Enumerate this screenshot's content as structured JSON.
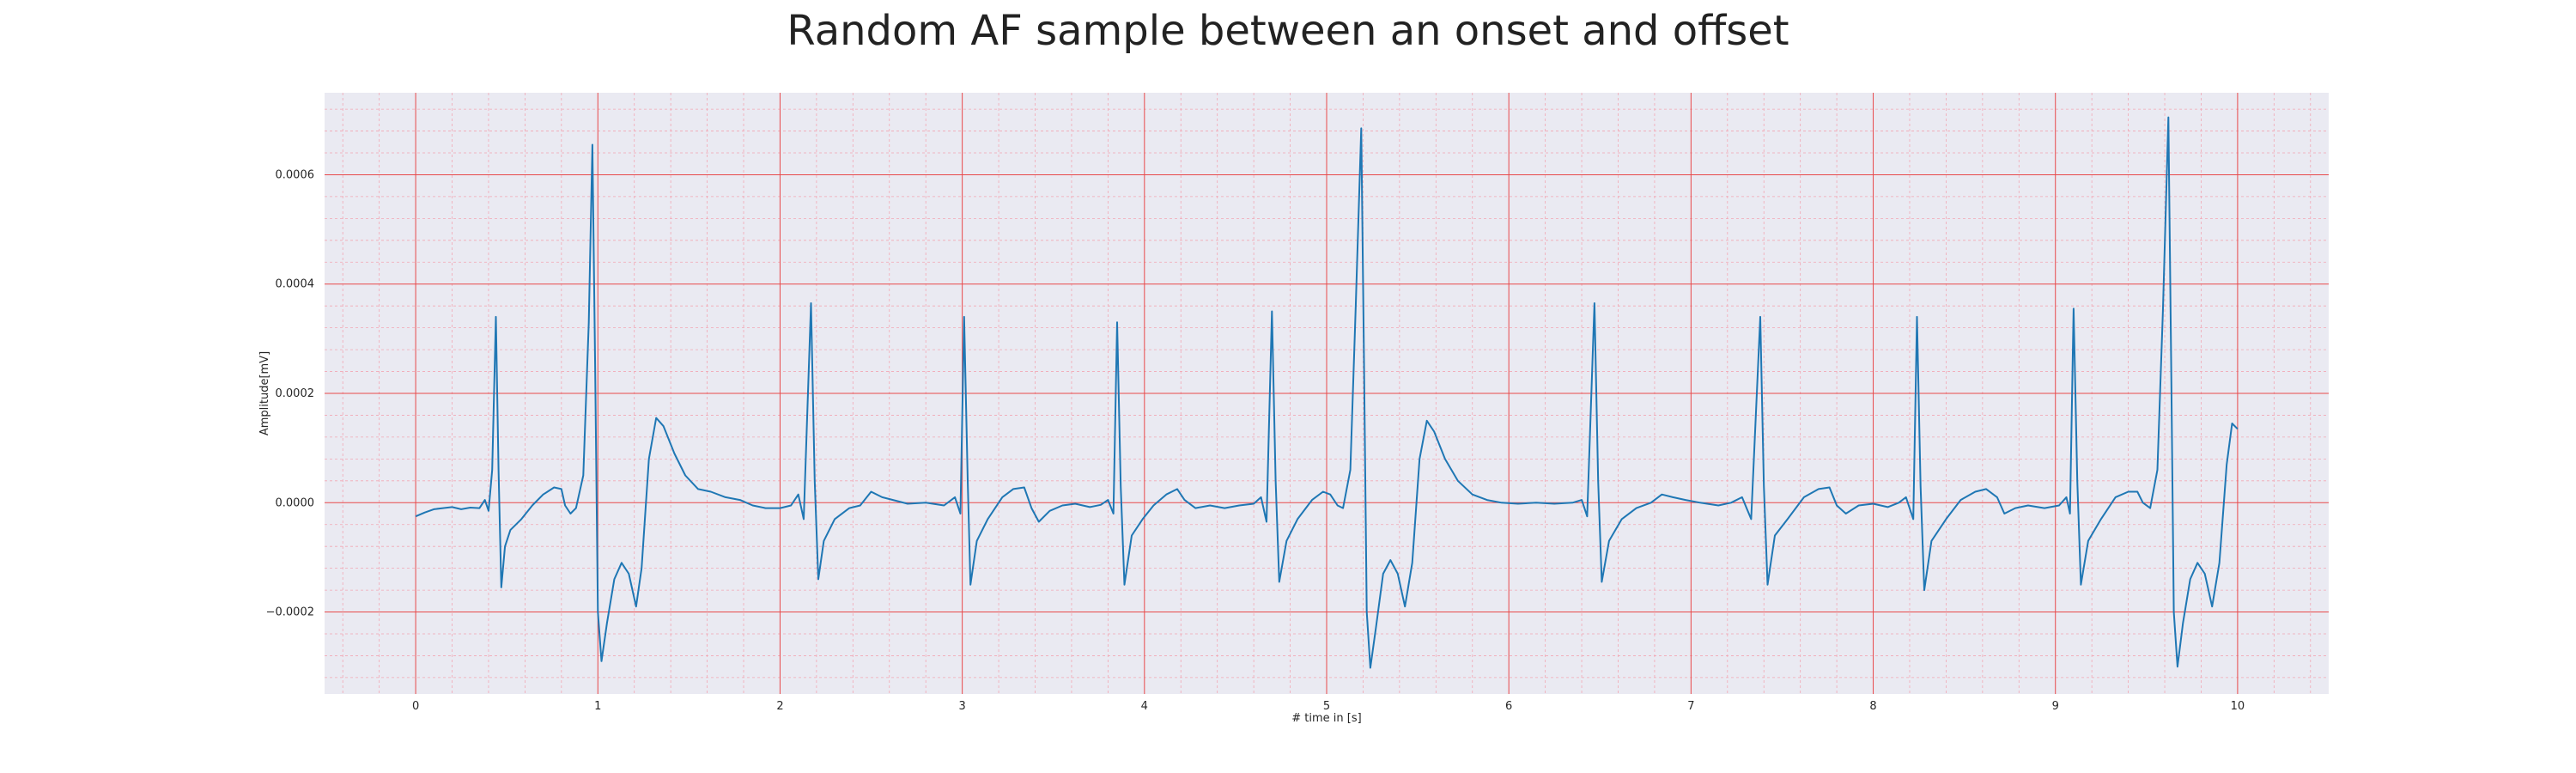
{
  "chart_data": {
    "type": "line",
    "title": "Random AF sample between an onset and offset",
    "xlabel": "# time in [s]",
    "ylabel": "Amplitude[mV]",
    "xlim": [
      -0.5,
      10.5
    ],
    "ylim": [
      -0.00035,
      0.00075
    ],
    "xticks": [
      0,
      1,
      2,
      3,
      4,
      5,
      6,
      7,
      8,
      9,
      10
    ],
    "xtick_labels": [
      "0",
      "1",
      "2",
      "3",
      "4",
      "5",
      "6",
      "7",
      "8",
      "9",
      "10"
    ],
    "yticks": [
      -0.0002,
      0.0,
      0.0002,
      0.0004,
      0.0006
    ],
    "ytick_labels": [
      "−0.0002",
      "0.0000",
      "0.0002",
      "0.0004",
      "0.0006"
    ],
    "grid": true,
    "minor_grid": true,
    "colors": {
      "background": "#eaeaf2",
      "major_grid": "#e8494a",
      "minor_grid": "#f2a7b4",
      "series": "#1f77b4"
    },
    "series": [
      {
        "values": [
          [
            0.0,
            -2.5e-05
          ],
          [
            0.05,
            -1.8e-05
          ],
          [
            0.1,
            -1.2e-05
          ],
          [
            0.15,
            -1e-05
          ],
          [
            0.2,
            -8e-06
          ],
          [
            0.25,
            -1.2e-05
          ],
          [
            0.3,
            -9e-06
          ],
          [
            0.35,
            -1e-05
          ],
          [
            0.38,
            5e-06
          ],
          [
            0.4,
            -1.5e-05
          ],
          [
            0.42,
            6e-05
          ],
          [
            0.44,
            0.00034
          ],
          [
            0.455,
            6e-05
          ],
          [
            0.47,
            -0.000155
          ],
          [
            0.49,
            -8e-05
          ],
          [
            0.52,
            -5e-05
          ],
          [
            0.58,
            -3e-05
          ],
          [
            0.64,
            -5e-06
          ],
          [
            0.7,
            1.5e-05
          ],
          [
            0.76,
            2.8e-05
          ],
          [
            0.8,
            2.5e-05
          ],
          [
            0.82,
            -5e-06
          ],
          [
            0.85,
            -2e-05
          ],
          [
            0.88,
            -1e-05
          ],
          [
            0.92,
            5e-05
          ],
          [
            0.95,
            0.00033
          ],
          [
            0.97,
            0.000655
          ],
          [
            0.985,
            0.00025
          ],
          [
            1.0,
            -0.0002
          ],
          [
            1.02,
            -0.00029
          ],
          [
            1.05,
            -0.00022
          ],
          [
            1.09,
            -0.00014
          ],
          [
            1.13,
            -0.00011
          ],
          [
            1.17,
            -0.00013
          ],
          [
            1.21,
            -0.00019
          ],
          [
            1.24,
            -0.00012
          ],
          [
            1.28,
            8e-05
          ],
          [
            1.32,
            0.000155
          ],
          [
            1.36,
            0.00014
          ],
          [
            1.42,
            9e-05
          ],
          [
            1.48,
            5e-05
          ],
          [
            1.55,
            2.5e-05
          ],
          [
            1.62,
            2e-05
          ],
          [
            1.7,
            1e-05
          ],
          [
            1.78,
            5e-06
          ],
          [
            1.85,
            -5e-06
          ],
          [
            1.92,
            -1e-05
          ],
          [
            2.0,
            -1e-05
          ],
          [
            2.06,
            -5e-06
          ],
          [
            2.1,
            1.5e-05
          ],
          [
            2.13,
            -3e-05
          ],
          [
            2.17,
            0.000365
          ],
          [
            2.19,
            4e-05
          ],
          [
            2.21,
            -0.00014
          ],
          [
            2.24,
            -7e-05
          ],
          [
            2.3,
            -3e-05
          ],
          [
            2.38,
            -1e-05
          ],
          [
            2.44,
            -5e-06
          ],
          [
            2.5,
            2e-05
          ],
          [
            2.56,
            1e-05
          ],
          [
            2.62,
            5e-06
          ],
          [
            2.7,
            -2e-06
          ],
          [
            2.8,
            0.0
          ],
          [
            2.9,
            -5e-06
          ],
          [
            2.96,
            1e-05
          ],
          [
            2.99,
            -2e-05
          ],
          [
            3.01,
            0.00034
          ],
          [
            3.03,
            4e-05
          ],
          [
            3.045,
            -0.00015
          ],
          [
            3.08,
            -7e-05
          ],
          [
            3.14,
            -3e-05
          ],
          [
            3.22,
            1e-05
          ],
          [
            3.28,
            2.5e-05
          ],
          [
            3.34,
            2.8e-05
          ],
          [
            3.38,
            -1e-05
          ],
          [
            3.42,
            -3.5e-05
          ],
          [
            3.48,
            -1.5e-05
          ],
          [
            3.55,
            -5e-06
          ],
          [
            3.62,
            -2e-06
          ],
          [
            3.7,
            -8e-06
          ],
          [
            3.76,
            -4e-06
          ],
          [
            3.8,
            5e-06
          ],
          [
            3.83,
            -2e-05
          ],
          [
            3.85,
            0.00033
          ],
          [
            3.87,
            3e-05
          ],
          [
            3.89,
            -0.00015
          ],
          [
            3.93,
            -6e-05
          ],
          [
            3.99,
            -3e-05
          ],
          [
            4.05,
            -5e-06
          ],
          [
            4.12,
            1.5e-05
          ],
          [
            4.18,
            2.5e-05
          ],
          [
            4.22,
            5e-06
          ],
          [
            4.28,
            -1e-05
          ],
          [
            4.36,
            -5e-06
          ],
          [
            4.44,
            -1e-05
          ],
          [
            4.52,
            -5e-06
          ],
          [
            4.6,
            -2e-06
          ],
          [
            4.64,
            1e-05
          ],
          [
            4.67,
            -3.5e-05
          ],
          [
            4.7,
            0.00035
          ],
          [
            4.72,
            4e-05
          ],
          [
            4.74,
            -0.000145
          ],
          [
            4.78,
            -7e-05
          ],
          [
            4.84,
            -3e-05
          ],
          [
            4.92,
            5e-06
          ],
          [
            4.98,
            2e-05
          ],
          [
            5.02,
            1.5e-05
          ],
          [
            5.06,
            -5e-06
          ],
          [
            5.09,
            -1e-05
          ],
          [
            5.13,
            6e-05
          ],
          [
            5.16,
            0.00036
          ],
          [
            5.19,
            0.000685
          ],
          [
            5.205,
            0.00026
          ],
          [
            5.22,
            -0.0002
          ],
          [
            5.24,
            -0.000302
          ],
          [
            5.27,
            -0.00023
          ],
          [
            5.31,
            -0.00013
          ],
          [
            5.35,
            -0.000105
          ],
          [
            5.39,
            -0.00013
          ],
          [
            5.43,
            -0.00019
          ],
          [
            5.47,
            -0.00011
          ],
          [
            5.51,
            8e-05
          ],
          [
            5.55,
            0.00015
          ],
          [
            5.59,
            0.00013
          ],
          [
            5.65,
            8e-05
          ],
          [
            5.72,
            4e-05
          ],
          [
            5.8,
            1.5e-05
          ],
          [
            5.88,
            5e-06
          ],
          [
            5.96,
            0.0
          ],
          [
            6.05,
            -2e-06
          ],
          [
            6.15,
            0.0
          ],
          [
            6.25,
            -2e-06
          ],
          [
            6.35,
            0.0
          ],
          [
            6.4,
            5e-06
          ],
          [
            6.43,
            -2.5e-05
          ],
          [
            6.47,
            0.000365
          ],
          [
            6.49,
            4e-05
          ],
          [
            6.51,
            -0.000145
          ],
          [
            6.55,
            -7e-05
          ],
          [
            6.62,
            -3e-05
          ],
          [
            6.7,
            -1e-05
          ],
          [
            6.78,
            0.0
          ],
          [
            6.84,
            1.5e-05
          ],
          [
            6.9,
            1e-05
          ],
          [
            6.97,
            5e-06
          ],
          [
            7.05,
            0.0
          ],
          [
            7.15,
            -5e-06
          ],
          [
            7.22,
            0.0
          ],
          [
            7.28,
            1e-05
          ],
          [
            7.33,
            -3e-05
          ],
          [
            7.38,
            0.00034
          ],
          [
            7.4,
            3e-05
          ],
          [
            7.42,
            -0.00015
          ],
          [
            7.46,
            -6e-05
          ],
          [
            7.53,
            -3e-05
          ],
          [
            7.62,
            1e-05
          ],
          [
            7.7,
            2.5e-05
          ],
          [
            7.76,
            2.8e-05
          ],
          [
            7.8,
            -5e-06
          ],
          [
            7.85,
            -2e-05
          ],
          [
            7.92,
            -5e-06
          ],
          [
            8.0,
            -2e-06
          ],
          [
            8.08,
            -8e-06
          ],
          [
            8.14,
            0.0
          ],
          [
            8.18,
            1e-05
          ],
          [
            8.22,
            -3e-05
          ],
          [
            8.24,
            0.00034
          ],
          [
            8.26,
            3e-05
          ],
          [
            8.28,
            -0.00016
          ],
          [
            8.32,
            -7e-05
          ],
          [
            8.4,
            -3e-05
          ],
          [
            8.48,
            5e-06
          ],
          [
            8.56,
            2e-05
          ],
          [
            8.62,
            2.5e-05
          ],
          [
            8.68,
            1e-05
          ],
          [
            8.72,
            -2e-05
          ],
          [
            8.78,
            -1e-05
          ],
          [
            8.85,
            -5e-06
          ],
          [
            8.94,
            -1e-05
          ],
          [
            9.02,
            -5e-06
          ],
          [
            9.06,
            1e-05
          ],
          [
            9.08,
            -2e-05
          ],
          [
            9.1,
            0.000355
          ],
          [
            9.12,
            4e-05
          ],
          [
            9.14,
            -0.00015
          ],
          [
            9.18,
            -7e-05
          ],
          [
            9.25,
            -3e-05
          ],
          [
            9.33,
            1e-05
          ],
          [
            9.4,
            2e-05
          ],
          [
            9.45,
            2e-05
          ],
          [
            9.48,
            0.0
          ],
          [
            9.52,
            -1e-05
          ],
          [
            9.56,
            6e-05
          ],
          [
            9.59,
            0.00035
          ],
          [
            9.62,
            0.000705
          ],
          [
            9.635,
            0.00026
          ],
          [
            9.65,
            -0.0002
          ],
          [
            9.67,
            -0.0003
          ],
          [
            9.7,
            -0.00022
          ],
          [
            9.74,
            -0.00014
          ],
          [
            9.78,
            -0.00011
          ],
          [
            9.82,
            -0.00013
          ],
          [
            9.86,
            -0.00019
          ],
          [
            9.9,
            -0.00011
          ],
          [
            9.94,
            7e-05
          ],
          [
            9.97,
            0.000145
          ],
          [
            10.0,
            0.000135
          ]
        ]
      }
    ]
  }
}
